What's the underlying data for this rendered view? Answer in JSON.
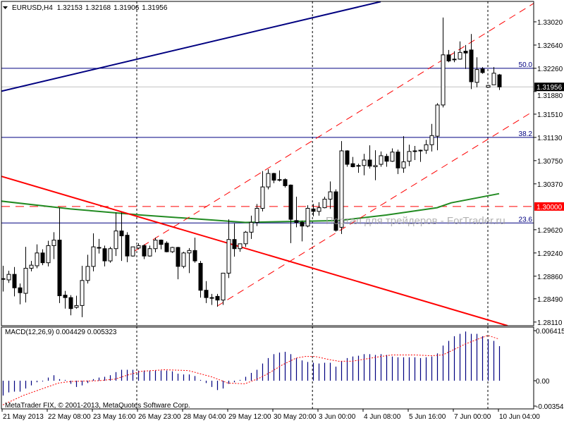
{
  "header": {
    "symbol": "EURUSD,H4",
    "open": "1.32153",
    "high": "1.32168",
    "low": "1.31906",
    "close": "1.31956"
  },
  "colors": {
    "background": "#ffffff",
    "candle_up": "#ffffff",
    "candle_down": "#000000",
    "trendline_blue": "#000080",
    "trendline_red": "#ff0000",
    "moving_average": "#228b22",
    "macd_histogram": "#000080",
    "macd_signal": "#ff0000",
    "price_label_current": "#000000",
    "price_label_level": "#ff0000",
    "watermark": "#a0a0a0"
  },
  "watermark": "Портал для трейдеров - ForTrader.ru",
  "copyright": "MetaTrader FIX, © 2001-2013, MetaQuotes Software Corp.",
  "macd": {
    "label": "MACD(12,26,9) 0.004429 0.005323",
    "axis_labels": [
      {
        "value": 0.006415,
        "text": "0.006415"
      },
      {
        "value": 0.0,
        "text": "0.00"
      },
      {
        "value": -0.00354,
        "text": "-0.00354"
      }
    ]
  },
  "chart_data": {
    "type": "candlestick",
    "timeframe": "H4",
    "ylim": [
      1.2811,
      1.3338
    ],
    "price_axis_labels": [
      "1.33020",
      "1.32640",
      "1.32260",
      "1.31880",
      "1.31510",
      "1.31130",
      "1.30750",
      "1.30370",
      "1.29620",
      "1.29240",
      "1.28860",
      "1.28490",
      "1.28110"
    ],
    "current_price": {
      "value": 1.31956,
      "text": "1.31956"
    },
    "level_price": {
      "value": 1.3,
      "text": "1.30000"
    },
    "time_axis_labels": [
      {
        "index": 0,
        "text": "21 May 2013"
      },
      {
        "index": 8,
        "text": "22 May 08:00"
      },
      {
        "index": 16,
        "text": "23 May 16:00"
      },
      {
        "index": 24,
        "text": "26 May 23:00"
      },
      {
        "index": 32,
        "text": "28 May 04:00"
      },
      {
        "index": 40,
        "text": "29 May 12:00"
      },
      {
        "index": 48,
        "text": "30 May 20:00"
      },
      {
        "index": 56,
        "text": "3 Jun 00:00"
      },
      {
        "index": 64,
        "text": "4 Jun 08:00"
      },
      {
        "index": 72,
        "text": "5 Jun 16:00"
      },
      {
        "index": 80,
        "text": "7 Jun 00:00"
      },
      {
        "index": 88,
        "text": "10 Jun 04:00"
      }
    ],
    "period_separators": [
      23.75,
      54.9,
      86
    ],
    "fibo_levels": [
      {
        "level": "50.0",
        "price": 1.3226
      },
      {
        "level": "38.2",
        "price": 1.3113
      },
      {
        "level": "23.6",
        "price": 1.2973
      }
    ],
    "trendlines": [
      {
        "name": "blue-trendline",
        "color": "#000080",
        "style": "solid",
        "points": [
          [
            -0.5,
            1.3188
          ],
          [
            67,
            1.3335
          ]
        ]
      },
      {
        "name": "red-trendline",
        "color": "#ff0000",
        "style": "solid",
        "points": [
          [
            -0.5,
            1.305
          ],
          [
            89.5,
            1.2805
          ]
        ]
      },
      {
        "name": "channel-upper",
        "color": "#ff0000",
        "style": "dashed",
        "points": [
          [
            23,
            1.2925
          ],
          [
            94.1,
            1.3332
          ]
        ]
      },
      {
        "name": "channel-lower",
        "color": "#ff0000",
        "style": "dashed",
        "points": [
          [
            38,
            1.2837
          ],
          [
            94.1,
            1.3156
          ]
        ]
      }
    ],
    "moving_average": [
      [
        -0.5,
        1.3009
      ],
      [
        12,
        1.2996
      ],
      [
        24.5,
        1.2986
      ],
      [
        37,
        1.2978
      ],
      [
        43,
        1.2974
      ],
      [
        59.5,
        1.2977
      ],
      [
        68,
        1.2986
      ],
      [
        77,
        1.2998
      ],
      [
        79.5,
        1.3006
      ],
      [
        88,
        1.3021
      ]
    ],
    "ohlc": [
      [
        1.2882,
        1.2903,
        1.2861,
        1.2881
      ],
      [
        1.288,
        1.2895,
        1.2875,
        1.2889
      ],
      [
        1.2889,
        1.2901,
        1.2853,
        1.2867
      ],
      [
        1.2867,
        1.2874,
        1.284,
        1.2859
      ],
      [
        1.2858,
        1.2934,
        1.2843,
        1.2899
      ],
      [
        1.2899,
        1.2911,
        1.2894,
        1.2904
      ],
      [
        1.2903,
        1.2938,
        1.2899,
        1.2924
      ],
      [
        1.2924,
        1.293,
        1.2904,
        1.2908
      ],
      [
        1.2908,
        1.2944,
        1.2902,
        1.2936
      ],
      [
        1.2936,
        1.2958,
        1.2914,
        1.2945
      ],
      [
        1.2945,
        1.2998,
        1.2842,
        1.2854
      ],
      [
        1.2855,
        1.2862,
        1.2833,
        1.2851
      ],
      [
        1.2851,
        1.2855,
        1.2822,
        1.2833
      ],
      [
        1.2835,
        1.2854,
        1.2833,
        1.2838
      ],
      [
        1.2838,
        1.2903,
        1.2819,
        1.2879
      ],
      [
        1.2879,
        1.2921,
        1.2874,
        1.2902
      ],
      [
        1.2902,
        1.2956,
        1.2894,
        1.2934
      ],
      [
        1.2932,
        1.2947,
        1.2923,
        1.2933
      ],
      [
        1.2931,
        1.2936,
        1.2902,
        1.2911
      ],
      [
        1.2911,
        1.2934,
        1.2908,
        1.2931
      ],
      [
        1.2931,
        1.299,
        1.2919,
        1.296
      ],
      [
        1.296,
        1.299,
        1.2911,
        1.2952
      ],
      [
        1.2953,
        1.2958,
        1.2909,
        1.2919
      ],
      [
        1.2919,
        1.2934,
        1.2918,
        1.2934
      ],
      [
        1.2932,
        1.294,
        1.293,
        1.2936
      ],
      [
        1.2936,
        1.2938,
        1.2914,
        1.2919
      ],
      [
        1.2919,
        1.2936,
        1.2918,
        1.2931
      ],
      [
        1.2931,
        1.2949,
        1.2925,
        1.2945
      ],
      [
        1.2945,
        1.2946,
        1.293,
        1.2938
      ],
      [
        1.294,
        1.2943,
        1.2925,
        1.2926
      ],
      [
        1.2926,
        1.2934,
        1.2924,
        1.2933
      ],
      [
        1.2933,
        1.2934,
        1.2881,
        1.2902
      ],
      [
        1.2902,
        1.2926,
        1.2899,
        1.2924
      ],
      [
        1.2924,
        1.2932,
        1.2891,
        1.2928
      ],
      [
        1.2928,
        1.2949,
        1.2908,
        1.2911
      ],
      [
        1.2907,
        1.2911,
        1.2851,
        1.2863
      ],
      [
        1.2863,
        1.2878,
        1.2842,
        1.2851
      ],
      [
        1.2851,
        1.2857,
        1.2839,
        1.2851
      ],
      [
        1.2853,
        1.2857,
        1.2836,
        1.2847
      ],
      [
        1.2847,
        1.2891,
        1.2839,
        1.2891
      ],
      [
        1.2891,
        1.2979,
        1.2883,
        1.2946
      ],
      [
        1.2946,
        1.2972,
        1.2918,
        1.2931
      ],
      [
        1.2931,
        1.2939,
        1.2926,
        1.2939
      ],
      [
        1.2939,
        1.296,
        1.2934,
        1.2958
      ],
      [
        1.2958,
        1.2985,
        1.2947,
        1.2974
      ],
      [
        1.2974,
        1.3004,
        1.2968,
        1.2997
      ],
      [
        1.2997,
        1.3058,
        1.2992,
        1.3032
      ],
      [
        1.3032,
        1.3061,
        1.3028,
        1.3054
      ],
      [
        1.3054,
        1.3055,
        1.3038,
        1.3043
      ],
      [
        1.3044,
        1.3059,
        1.3041,
        1.3043
      ],
      [
        1.3044,
        1.3046,
        1.3031,
        1.3034
      ],
      [
        1.3035,
        1.3036,
        1.294,
        1.2979
      ],
      [
        1.2977,
        1.3016,
        1.2966,
        1.2974
      ],
      [
        1.2974,
        1.2977,
        1.2943,
        1.2968
      ],
      [
        1.2968,
        1.3002,
        1.2966,
        1.2997
      ],
      [
        1.2996,
        1.3004,
        1.2984,
        1.2992
      ],
      [
        1.2992,
        1.3007,
        1.2985,
        1.2998
      ],
      [
        1.2998,
        1.3016,
        1.2997,
        1.3012
      ],
      [
        1.3012,
        1.3041,
        1.2996,
        1.3024
      ],
      [
        1.3024,
        1.3028,
        1.2959,
        1.2961
      ],
      [
        1.2966,
        1.3107,
        1.2955,
        1.3091
      ],
      [
        1.3091,
        1.3092,
        1.3065,
        1.3069
      ],
      [
        1.307,
        1.3081,
        1.3064,
        1.3065
      ],
      [
        1.3067,
        1.307,
        1.3055,
        1.3067
      ],
      [
        1.3067,
        1.3086,
        1.3051,
        1.3076
      ],
      [
        1.3076,
        1.31,
        1.3062,
        1.3066
      ],
      [
        1.3065,
        1.3092,
        1.3043,
        1.3067
      ],
      [
        1.3069,
        1.309,
        1.3065,
        1.3083
      ],
      [
        1.3082,
        1.3086,
        1.3065,
        1.3074
      ],
      [
        1.3074,
        1.3095,
        1.3073,
        1.3089
      ],
      [
        1.3089,
        1.3093,
        1.3053,
        1.3063
      ],
      [
        1.3063,
        1.3115,
        1.3055,
        1.3073
      ],
      [
        1.3074,
        1.3101,
        1.3066,
        1.309
      ],
      [
        1.3091,
        1.3099,
        1.3076,
        1.3091
      ],
      [
        1.3092,
        1.3093,
        1.3073,
        1.3092
      ],
      [
        1.3092,
        1.3109,
        1.3086,
        1.3101
      ],
      [
        1.3101,
        1.3135,
        1.309,
        1.3116
      ],
      [
        1.3115,
        1.3169,
        1.3092,
        1.3166
      ],
      [
        1.3166,
        1.3309,
        1.3162,
        1.3248
      ],
      [
        1.3248,
        1.3256,
        1.3236,
        1.3238
      ],
      [
        1.3241,
        1.3254,
        1.3236,
        1.3241
      ],
      [
        1.3241,
        1.327,
        1.324,
        1.3252
      ],
      [
        1.3254,
        1.3264,
        1.3225,
        1.3251
      ],
      [
        1.3256,
        1.3282,
        1.3192,
        1.3204
      ],
      [
        1.3203,
        1.3244,
        1.3195,
        1.3224
      ],
      [
        1.3225,
        1.3228,
        1.3217,
        1.3219
      ],
      [
        1.3195,
        1.3199,
        1.3195,
        1.3198
      ],
      [
        1.3199,
        1.3228,
        1.3199,
        1.3218
      ],
      [
        1.32153,
        1.32168,
        1.31906,
        1.31956
      ]
    ],
    "macd_ylim": [
      -0.00354,
      0.006415
    ],
    "macd_histogram": [
      -0.0019,
      -0.0015,
      -0.0014,
      -0.0014,
      -0.001,
      -0.0006,
      -0.0002,
      -0.0001,
      0.0004,
      0.0007,
      0.0002,
      0.0001,
      -0.0004,
      -0.0008,
      -0.0006,
      -0.0003,
      0.0002,
      0.0004,
      0.0005,
      0.0007,
      0.0011,
      0.0014,
      0.0014,
      0.0014,
      0.0013,
      0.0013,
      0.0013,
      0.0013,
      0.0013,
      0.0013,
      0.0012,
      0.0009,
      0.0008,
      0.0008,
      0.0006,
      0.0001,
      -0.0003,
      -0.0008,
      -0.0012,
      -0.001,
      -0.0004,
      -0.0002,
      0.0001,
      0.0005,
      0.001,
      0.0014,
      0.0022,
      0.0029,
      0.0034,
      0.0036,
      0.0037,
      0.0034,
      0.0029,
      0.0026,
      0.0024,
      0.0023,
      0.0022,
      0.0023,
      0.0023,
      0.0018,
      0.0025,
      0.0029,
      0.0031,
      0.0032,
      0.0034,
      0.0034,
      0.0033,
      0.0034,
      0.0033,
      0.0031,
      0.003,
      0.003,
      0.003,
      0.003,
      0.0029,
      0.003,
      0.0031,
      0.0035,
      0.0045,
      0.0051,
      0.0057,
      0.006,
      0.0063,
      0.006,
      0.006,
      0.0057,
      0.0053,
      0.0051,
      0.004429
    ],
    "macd_signal": [
      [
        0,
        -0.0031
      ],
      [
        3.6,
        -0.0019
      ],
      [
        7.9,
        -0.0008
      ],
      [
        9.9,
        -0.0003
      ],
      [
        12,
        -0.0001
      ],
      [
        17,
        0.0
      ],
      [
        19.9,
        0.0002
      ],
      [
        22,
        0.0007
      ],
      [
        24.5,
        0.0012
      ],
      [
        28.6,
        0.0014
      ],
      [
        32.9,
        0.0013
      ],
      [
        37,
        0.0005
      ],
      [
        39.9,
        -0.0003
      ],
      [
        42.9,
        -0.0004
      ],
      [
        45.4,
        0.0003
      ],
      [
        47,
        0.0009
      ],
      [
        49.5,
        0.002
      ],
      [
        52,
        0.0029
      ],
      [
        53.6,
        0.0031
      ],
      [
        55.4,
        0.0031
      ],
      [
        57.9,
        0.0027
      ],
      [
        59.5,
        0.0025
      ],
      [
        62,
        0.0025
      ],
      [
        64.5,
        0.0028
      ],
      [
        67,
        0.0031
      ],
      [
        69,
        0.0033
      ],
      [
        73,
        0.0033
      ],
      [
        76,
        0.0032
      ],
      [
        78,
        0.0033
      ],
      [
        80,
        0.004
      ],
      [
        82,
        0.0047
      ],
      [
        84.5,
        0.0054
      ],
      [
        86,
        0.0058
      ],
      [
        88,
        0.005323
      ]
    ]
  }
}
